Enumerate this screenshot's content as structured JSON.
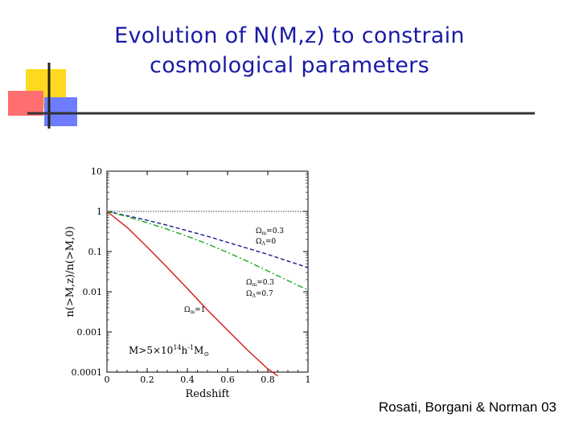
{
  "slide": {
    "title": "Evolution of N(M,z) to constrain cosmological parameters",
    "title_line1": "Evolution of N(M,z) to constrain",
    "title_line2": "cosmological parameters",
    "credit": "Rosati, Borgani & Norman 03"
  },
  "colors": {
    "title": "#1a1aa6",
    "deco_yellow": "#ffd820",
    "deco_red": "#ff6f6f",
    "deco_blue": "#6e7dff",
    "series_open": "#1a1a8c",
    "series_lambda": "#1aa81a",
    "series_flat": "#d41a1a"
  },
  "chart_data": {
    "type": "line",
    "xlabel": "Redshift",
    "ylabel": "n(>M,z)/n(>M,0)",
    "xlim": [
      0,
      1
    ],
    "ylim": [
      0.0001,
      10
    ],
    "y_scale": "log",
    "x_ticks": [
      "0",
      "0.2",
      "0.4",
      "0.6",
      "0.8",
      "1"
    ],
    "y_ticks": [
      "10",
      "1",
      "0.1",
      "0.01",
      "0.001",
      "0.0001"
    ],
    "reference_line": 1,
    "annotation": "M>5×10¹⁴h⁻¹M⊙",
    "annotation_main": "M>5×10",
    "annotation_sup": "14",
    "annotation_tail": "h",
    "annotation_sup2": "-1",
    "annotation_tail2": "M",
    "annotation_sub": "⊙",
    "series": [
      {
        "name": "Ωm=0.3 ΩΛ=0",
        "label_line1": "Ω",
        "label_sub1": "m",
        "label_val1": "=0.3",
        "label_line2": "Ω",
        "label_sub2": "Λ",
        "label_val2": "=0",
        "style": "dashed",
        "color": "#1a1a8c",
        "x": [
          0,
          0.1,
          0.2,
          0.3,
          0.4,
          0.5,
          0.6,
          0.7,
          0.8,
          0.9,
          1.0
        ],
        "y": [
          1,
          0.78,
          0.6,
          0.45,
          0.33,
          0.24,
          0.17,
          0.12,
          0.085,
          0.058,
          0.04
        ]
      },
      {
        "name": "Ωm=0.3 ΩΛ=0.7",
        "label_line1": "Ω",
        "label_sub1": "m",
        "label_val1": "=0.3",
        "label_line2": "Ω",
        "label_sub2": "Λ",
        "label_val2": "=0.7",
        "style": "dashdot",
        "color": "#1aa81a",
        "x": [
          0,
          0.1,
          0.2,
          0.3,
          0.4,
          0.5,
          0.6,
          0.7,
          0.8,
          0.9,
          1.0
        ],
        "y": [
          1,
          0.74,
          0.52,
          0.36,
          0.24,
          0.155,
          0.095,
          0.057,
          0.033,
          0.019,
          0.011
        ]
      },
      {
        "name": "Ωm=1",
        "label_line1": "Ω",
        "label_sub1": "m",
        "label_val1": "=1",
        "style": "solid",
        "color": "#d41a1a",
        "x": [
          0,
          0.1,
          0.2,
          0.3,
          0.4,
          0.5,
          0.6,
          0.7,
          0.8,
          0.85
        ],
        "y": [
          1,
          0.4,
          0.13,
          0.04,
          0.012,
          0.0035,
          0.0011,
          0.00035,
          0.00012,
          8e-05
        ]
      }
    ]
  }
}
